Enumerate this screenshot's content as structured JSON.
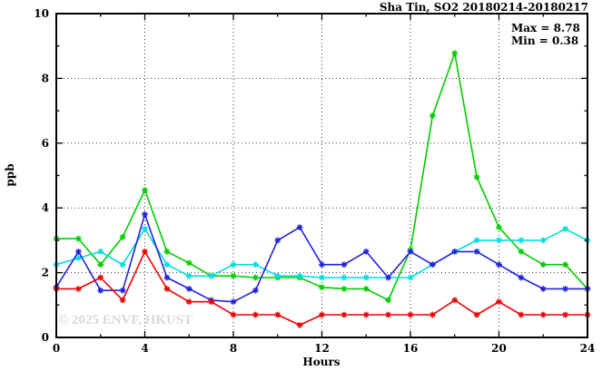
{
  "window": {
    "title": "Sha Tin, SO2 20180214-20180217"
  },
  "chart_data": {
    "type": "line",
    "title": "Sha Tin, SO2 20180214-20180217",
    "xlabel": "Hours",
    "ylabel": "ppb",
    "xlim": [
      0,
      24
    ],
    "ylim": [
      0,
      10
    ],
    "xticks": [
      0,
      4,
      8,
      12,
      16,
      20,
      24
    ],
    "yticks": [
      0,
      2,
      4,
      6,
      8,
      10
    ],
    "minor_xticks": [
      2,
      6,
      10,
      14,
      18,
      22
    ],
    "minor_yticks": [
      1,
      3,
      5,
      7,
      9
    ],
    "grid_xticks": [
      4,
      8,
      12,
      16,
      20
    ],
    "grid_yticks": [
      2,
      4,
      6,
      8
    ],
    "grid": true,
    "legend_position": "none",
    "annotations": {
      "max_label": "Max = 8.78",
      "min_label": "Min = 0.38"
    },
    "watermark": "© 2025 ENVF, HKUST",
    "x": [
      0,
      1,
      2,
      3,
      4,
      5,
      6,
      7,
      8,
      9,
      10,
      11,
      12,
      13,
      14,
      15,
      16,
      17,
      18,
      19,
      20,
      21,
      22,
      23,
      24
    ],
    "series": [
      {
        "name": "green-series",
        "color": "#00cc00",
        "values": [
          3.05,
          3.05,
          2.25,
          3.1,
          4.55,
          2.65,
          2.3,
          1.9,
          1.9,
          1.85,
          1.85,
          1.85,
          1.55,
          1.5,
          1.5,
          1.15,
          2.7,
          6.85,
          8.78,
          4.95,
          3.4,
          2.65,
          2.25,
          2.25,
          1.5
        ]
      },
      {
        "name": "cyan-series",
        "color": "#00dede",
        "values": [
          2.25,
          2.45,
          2.65,
          2.25,
          3.35,
          2.25,
          1.9,
          1.9,
          2.25,
          2.25,
          1.9,
          1.9,
          1.85,
          1.85,
          1.85,
          1.85,
          1.85,
          2.25,
          2.65,
          3.0,
          3.0,
          3.0,
          3.0,
          3.35,
          3.0
        ]
      },
      {
        "name": "blue-series",
        "color": "#2222dd",
        "values": [
          1.55,
          2.65,
          1.45,
          1.45,
          3.8,
          1.85,
          1.5,
          1.15,
          1.1,
          1.45,
          3.0,
          3.4,
          2.25,
          2.25,
          2.65,
          1.85,
          2.65,
          2.25,
          2.65,
          2.65,
          2.25,
          1.85,
          1.5,
          1.5,
          1.5
        ]
      },
      {
        "name": "red-series",
        "color": "#ee0000",
        "values": [
          1.5,
          1.5,
          1.85,
          1.15,
          2.65,
          1.5,
          1.1,
          1.1,
          0.7,
          0.7,
          0.7,
          0.38,
          0.7,
          0.7,
          0.7,
          0.7,
          0.7,
          0.7,
          1.15,
          0.7,
          1.1,
          0.7,
          0.7,
          0.7,
          0.7
        ]
      }
    ],
    "stats": {
      "max": 8.78,
      "min": 0.38
    }
  }
}
